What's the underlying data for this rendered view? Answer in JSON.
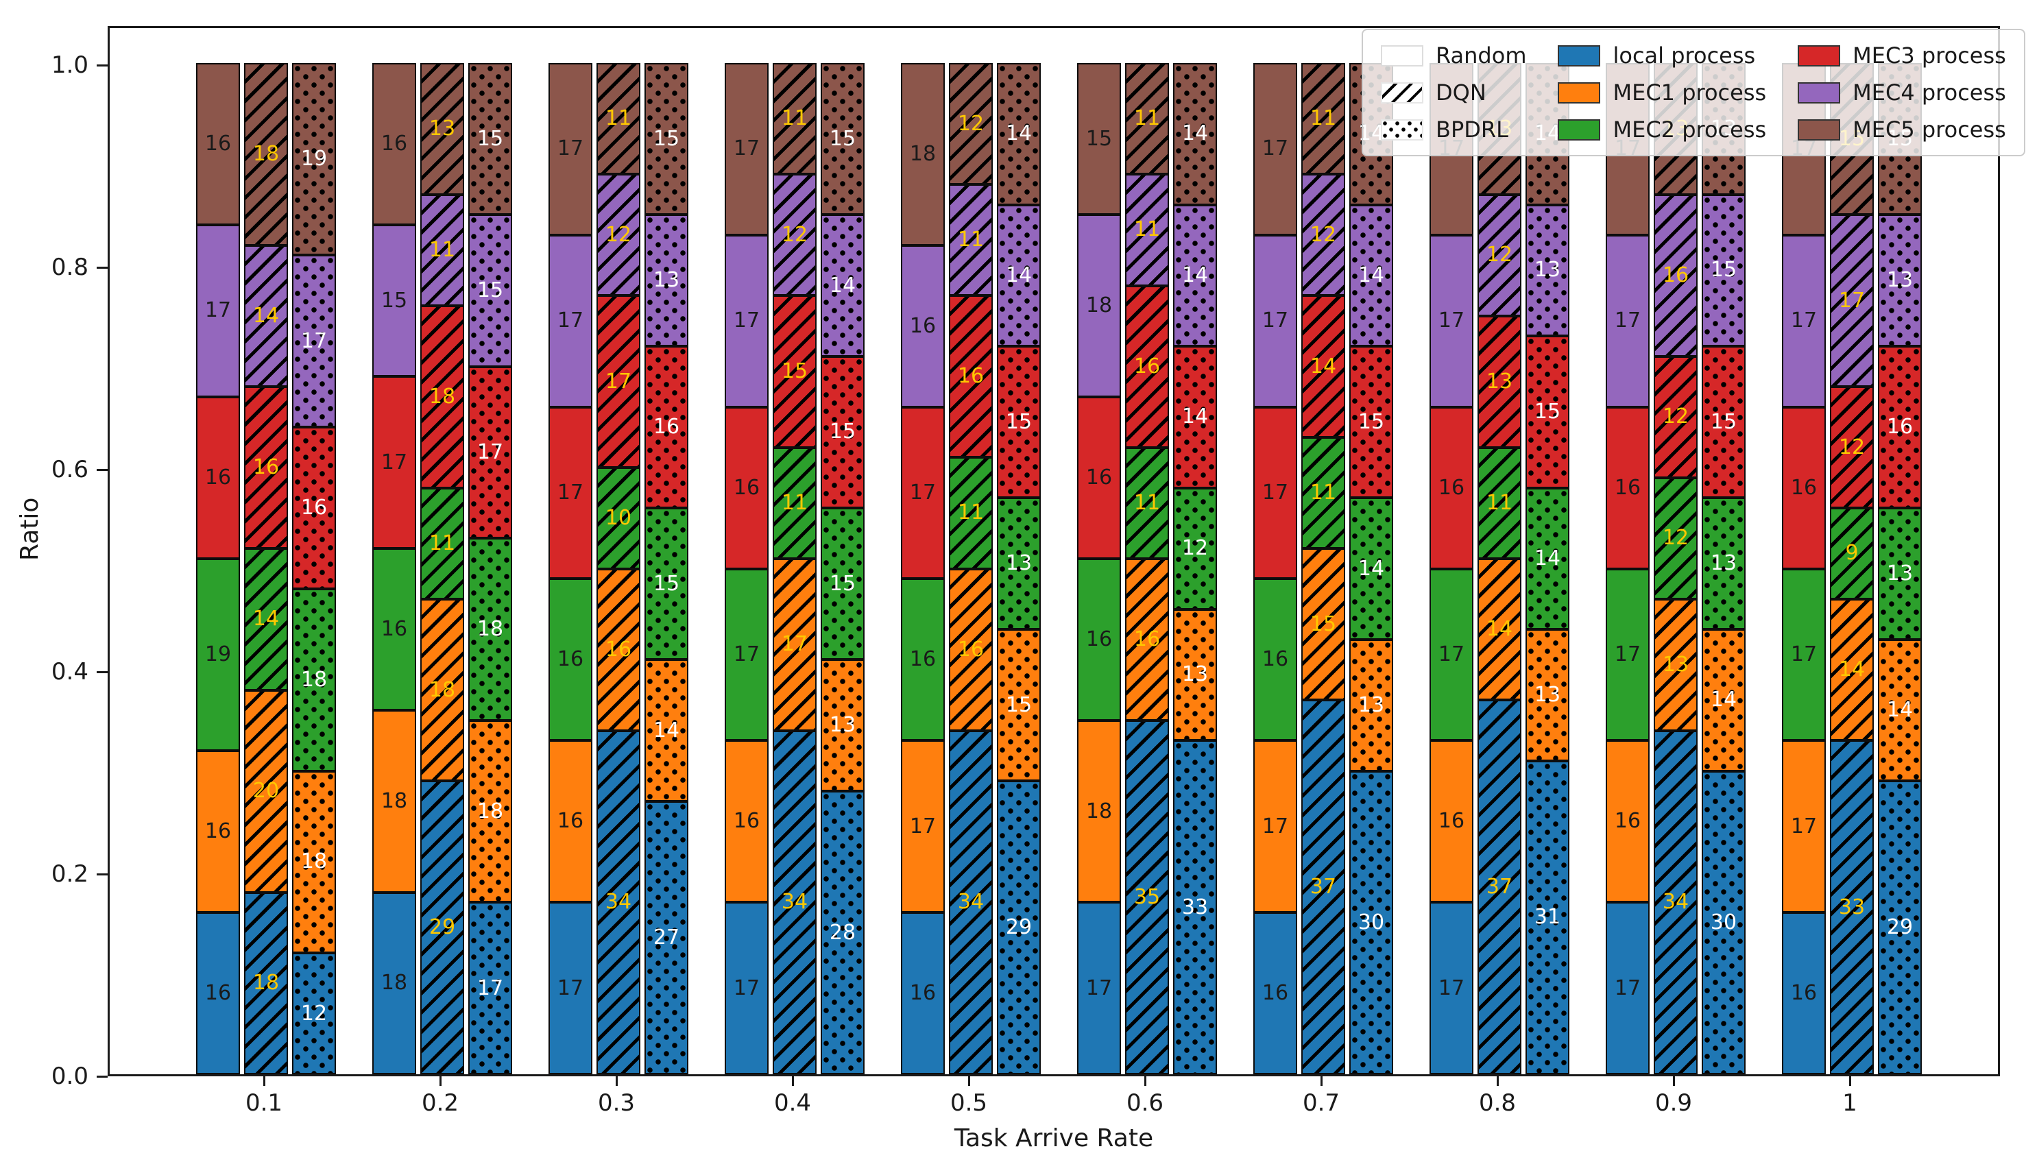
{
  "chart_data": {
    "type": "bar",
    "stacked": true,
    "title": "",
    "xlabel": "Task Arrive Rate",
    "ylabel": "Ratio",
    "x_ticks": [
      "0.1",
      "0.2",
      "0.3",
      "0.4",
      "0.5",
      "0.6",
      "0.7",
      "0.8",
      "0.9",
      "1"
    ],
    "y_ticks": [
      "0.0",
      "0.2",
      "0.4",
      "0.6",
      "0.8",
      "1.0"
    ],
    "ylim": [
      0,
      1.0
    ],
    "grid": false,
    "legend_position": "upper right",
    "units": "percent of tasks; bar height = value/100",
    "segments": [
      "local process",
      "MEC1 process",
      "MEC2 process",
      "MEC3 process",
      "MEC4 process",
      "MEC5 process"
    ],
    "segment_colors": [
      "#1f77b4",
      "#ff7f0e",
      "#2ca02c",
      "#d62728",
      "#9467bd",
      "#8c564b"
    ],
    "methods": [
      {
        "name": "Random",
        "hatch": "none",
        "label_color": "#1a1a1a",
        "values": [
          [
            16,
            16,
            19,
            16,
            17,
            16
          ],
          [
            18,
            18,
            16,
            17,
            15,
            16
          ],
          [
            17,
            16,
            16,
            17,
            17,
            17
          ],
          [
            17,
            16,
            17,
            16,
            17,
            17
          ],
          [
            16,
            17,
            16,
            17,
            16,
            18
          ],
          [
            17,
            18,
            16,
            16,
            18,
            15
          ],
          [
            16,
            17,
            16,
            17,
            17,
            17
          ],
          [
            17,
            16,
            17,
            16,
            17,
            17
          ],
          [
            17,
            16,
            17,
            16,
            17,
            17
          ],
          [
            16,
            17,
            17,
            16,
            17,
            17
          ]
        ]
      },
      {
        "name": "DQN",
        "hatch": "diagonal",
        "label_color": "#ffc800",
        "values": [
          [
            18,
            20,
            14,
            16,
            14,
            18
          ],
          [
            29,
            18,
            11,
            18,
            11,
            13
          ],
          [
            34,
            16,
            10,
            17,
            12,
            11
          ],
          [
            34,
            17,
            11,
            15,
            12,
            11
          ],
          [
            34,
            16,
            11,
            16,
            11,
            12
          ],
          [
            35,
            16,
            11,
            16,
            11,
            11
          ],
          [
            37,
            15,
            11,
            14,
            12,
            11
          ],
          [
            37,
            14,
            11,
            13,
            12,
            13
          ],
          [
            34,
            13,
            12,
            12,
            16,
            13
          ],
          [
            33,
            14,
            9,
            12,
            17,
            15
          ]
        ]
      },
      {
        "name": "BPDRL",
        "hatch": "dots",
        "label_color": "#ffffff",
        "values": [
          [
            12,
            18,
            18,
            16,
            17,
            19
          ],
          [
            17,
            18,
            18,
            17,
            15,
            15
          ],
          [
            27,
            14,
            15,
            16,
            13,
            15
          ],
          [
            28,
            13,
            15,
            15,
            14,
            15
          ],
          [
            29,
            15,
            13,
            15,
            14,
            14
          ],
          [
            33,
            13,
            12,
            14,
            14,
            14
          ],
          [
            30,
            13,
            14,
            15,
            14,
            14
          ],
          [
            31,
            13,
            14,
            15,
            13,
            14
          ],
          [
            30,
            14,
            13,
            15,
            15,
            13
          ],
          [
            29,
            14,
            13,
            16,
            13,
            15
          ]
        ]
      }
    ]
  }
}
